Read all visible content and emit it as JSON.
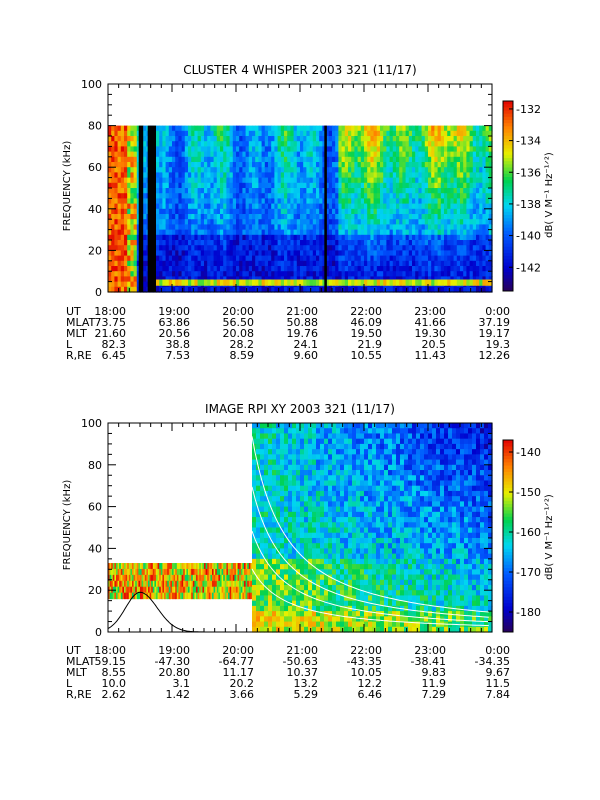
{
  "chart_data": [
    {
      "type": "heatmap",
      "title": "CLUSTER 4 WHISPER 2003 321 (11/17)",
      "ylabel": "FREQUENCY (kHz)",
      "ylim": [
        0,
        100
      ],
      "yticks": [
        "0",
        "20",
        "40",
        "60",
        "80",
        "100"
      ],
      "x_tick_labels": [
        "18:00",
        "19:00",
        "20:00",
        "21:00",
        "22:00",
        "23:00",
        "0:00"
      ],
      "data_upper_frequency_khz": 80,
      "colorbar": {
        "label": "dB( V M⁻¹ Hz⁻¹ᐟ²)",
        "range": [
          -143.5,
          -131.5
        ],
        "ticks": [
          "-132",
          "-134",
          "-136",
          "-138",
          "-140",
          "-142"
        ],
        "tick_values": [
          -132,
          -134,
          -136,
          -138,
          -140,
          -142
        ]
      },
      "data_gaps_ut": [
        [
          18.48,
          18.55
        ],
        [
          18.62,
          18.75
        ],
        [
          21.38,
          21.42
        ]
      ],
      "ephemeris": {
        "labels": [
          "UT",
          "MLAT",
          "MLT",
          "L",
          "R,RE"
        ],
        "rows": [
          [
            "18:00",
            "19:00",
            "20:00",
            "21:00",
            "22:00",
            "23:00",
            "0:00"
          ],
          [
            "73.75",
            "63.86",
            "56.50",
            "50.88",
            "46.09",
            "41.66",
            "37.19"
          ],
          [
            "21.60",
            "20.56",
            "20.08",
            "19.76",
            "19.50",
            "19.30",
            "19.17"
          ],
          [
            "82.3",
            "38.8",
            "28.2",
            "24.1",
            "21.9",
            "20.5",
            "19.3"
          ],
          [
            "6.45",
            "7.53",
            "8.59",
            "9.60",
            "10.55",
            "11.43",
            "12.26"
          ]
        ]
      }
    },
    {
      "type": "heatmap",
      "title": "IMAGE RPI XY 2003 321 (11/17)",
      "ylabel": "FREQUENCY (kHz)",
      "ylim": [
        0,
        100
      ],
      "yticks": [
        "0",
        "20",
        "40",
        "60",
        "80",
        "100"
      ],
      "x_tick_labels": [
        "18:00",
        "19:00",
        "20:00",
        "21:00",
        "22:00",
        "23:00",
        "0:00"
      ],
      "low_band_khz": [
        16,
        33
      ],
      "low_band_ut": [
        18.0,
        20.25
      ],
      "full_band_start_ut": 20.25,
      "colorbar": {
        "label": "dB( V M⁻¹ Hz⁻¹ᐟ²)",
        "range": [
          -185,
          -137
        ],
        "ticks": [
          "-140",
          "-150",
          "-160",
          "-170",
          "-180"
        ],
        "tick_values": [
          -140,
          -150,
          -160,
          -170,
          -180
        ]
      },
      "overlay_curve": {
        "description_color": "#000000",
        "peak_ut": 18.5,
        "peak_khz": 19
      },
      "ephemeris": {
        "labels": [
          "UT",
          "MLAT",
          "MLT",
          "L",
          "R,RE"
        ],
        "rows": [
          [
            "18:00",
            "19:00",
            "20:00",
            "21:00",
            "22:00",
            "23:00",
            "0:00"
          ],
          [
            "59.15",
            "-47.30",
            "-64.77",
            "-50.63",
            "-43.35",
            "-38.41",
            "-34.35"
          ],
          [
            "8.55",
            "20.80",
            "11.17",
            "10.37",
            "10.05",
            "9.83",
            "9.67"
          ],
          [
            "10.0",
            "3.1",
            "20.2",
            "13.2",
            "12.2",
            "11.9",
            "11.5"
          ],
          [
            "2.62",
            "1.42",
            "3.66",
            "5.29",
            "6.46",
            "7.29",
            "7.84"
          ]
        ]
      }
    }
  ]
}
